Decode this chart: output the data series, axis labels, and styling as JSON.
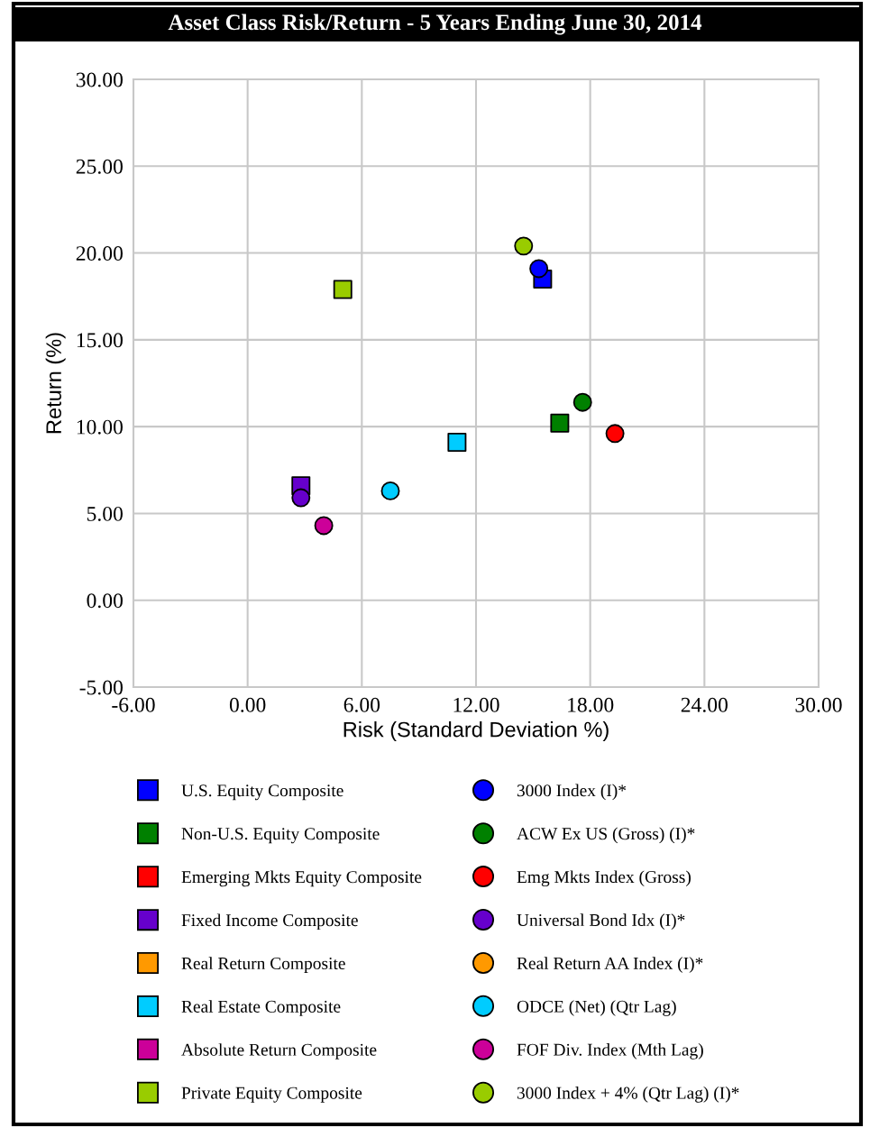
{
  "chart_data": {
    "type": "scatter",
    "title": "Asset Class Risk/Return - 5 Years Ending June 30, 2014",
    "xlabel": "Risk (Standard Deviation %)",
    "ylabel": "Return (%)",
    "xlim": [
      -6,
      30
    ],
    "ylim": [
      -5,
      30
    ],
    "xticks": [
      {
        "value": -6,
        "label": "-6.00"
      },
      {
        "value": 0,
        "label": "0.00"
      },
      {
        "value": 6,
        "label": "6.00"
      },
      {
        "value": 12,
        "label": "12.00"
      },
      {
        "value": 18,
        "label": "18.00"
      },
      {
        "value": 24,
        "label": "24.00"
      },
      {
        "value": 30,
        "label": "30.00"
      }
    ],
    "yticks": [
      {
        "value": -5,
        "label": "-5.00"
      },
      {
        "value": 0,
        "label": "0.00"
      },
      {
        "value": 5,
        "label": "5.00"
      },
      {
        "value": 10,
        "label": "10.00"
      },
      {
        "value": 15,
        "label": "15.00"
      },
      {
        "value": 20,
        "label": "20.00"
      },
      {
        "value": 25,
        "label": "25.00"
      },
      {
        "value": 30,
        "label": "30.00"
      }
    ],
    "grid": true,
    "legend": "bottom",
    "series": [
      {
        "name": "U.S. Equity Composite",
        "color": "#0000ff",
        "marker": "square",
        "x": [
          15.5
        ],
        "values": [
          18.5
        ]
      },
      {
        "name": "Non-U.S. Equity Composite",
        "color": "#008000",
        "marker": "square",
        "x": [
          16.4
        ],
        "values": [
          10.2
        ]
      },
      {
        "name": "Emerging Mkts Equity Composite",
        "color": "#ff0000",
        "marker": "square",
        "x": [
          null
        ],
        "values": [
          null
        ]
      },
      {
        "name": "Fixed Income Composite",
        "color": "#6600cc",
        "marker": "square",
        "x": [
          2.8
        ],
        "values": [
          6.6
        ]
      },
      {
        "name": "Real Return Composite",
        "color": "#ff9900",
        "marker": "square",
        "x": [
          null
        ],
        "values": [
          null
        ]
      },
      {
        "name": "Real Estate Composite",
        "color": "#00ccff",
        "marker": "square",
        "x": [
          11.0
        ],
        "values": [
          9.1
        ]
      },
      {
        "name": "Absolute Return Composite",
        "color": "#cc0099",
        "marker": "square",
        "x": [
          null
        ],
        "values": [
          null
        ]
      },
      {
        "name": "Private Equity Composite",
        "color": "#99cc00",
        "marker": "square",
        "x": [
          5.0
        ],
        "values": [
          17.9
        ]
      },
      {
        "name": "3000 Index (I)*",
        "color": "#0000ff",
        "marker": "circle",
        "x": [
          15.3
        ],
        "values": [
          19.1
        ]
      },
      {
        "name": "ACW Ex US (Gross) (I)*",
        "color": "#008000",
        "marker": "circle",
        "x": [
          17.6
        ],
        "values": [
          11.4
        ]
      },
      {
        "name": "Emg Mkts Index (Gross)",
        "color": "#ff0000",
        "marker": "circle",
        "x": [
          19.3
        ],
        "values": [
          9.6
        ]
      },
      {
        "name": "Universal Bond Idx (I)*",
        "color": "#6600cc",
        "marker": "circle",
        "x": [
          2.8
        ],
        "values": [
          5.9
        ]
      },
      {
        "name": "Real Return AA Index (I)*",
        "color": "#ff9900",
        "marker": "circle",
        "x": [
          null
        ],
        "values": [
          null
        ]
      },
      {
        "name": "ODCE (Net) (Qtr Lag)",
        "color": "#00ccff",
        "marker": "circle",
        "x": [
          7.5
        ],
        "values": [
          6.3
        ]
      },
      {
        "name": "FOF Div. Index (Mth Lag)",
        "color": "#cc0099",
        "marker": "circle",
        "x": [
          4.0
        ],
        "values": [
          4.3
        ]
      },
      {
        "name": "3000 Index + 4% (Qtr Lag) (I)*",
        "color": "#99cc00",
        "marker": "circle",
        "x": [
          14.5
        ],
        "values": [
          20.4
        ]
      }
    ]
  }
}
